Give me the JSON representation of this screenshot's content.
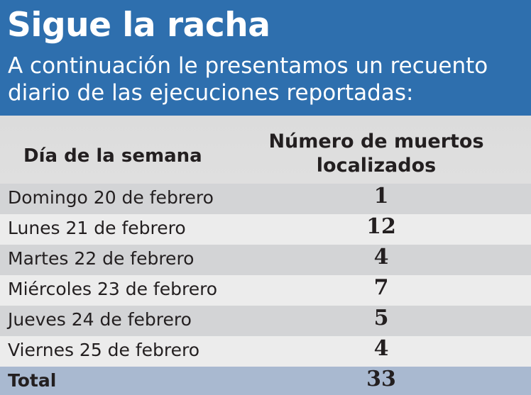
{
  "header": {
    "title": "Sigue la racha",
    "subtitle": "A continuación le presentamos un recuento diario de las ejecuciones reportadas:"
  },
  "colors": {
    "header_bg": "#2e6fae",
    "total_row_bg": "#a9b9d0"
  },
  "chart_data": {
    "type": "table",
    "title": "Sigue la racha",
    "subtitle": "A continuación le presentamos un recuento diario de las ejecuciones reportadas:",
    "columns": [
      "Día de la semana",
      "Número de muertos localizados"
    ],
    "rows": [
      {
        "day": "Domingo 20 de febrero",
        "value": "1"
      },
      {
        "day": "Lunes 21 de febrero",
        "value": "12"
      },
      {
        "day": "Martes 22 de febrero",
        "value": "4"
      },
      {
        "day": "Miércoles 23 de febrero",
        "value": "7"
      },
      {
        "day": "Jueves 24 de febrero",
        "value": "5"
      },
      {
        "day": "Viernes 25 de febrero",
        "value": "4"
      }
    ],
    "total": {
      "label": "Total",
      "value": "33"
    }
  }
}
